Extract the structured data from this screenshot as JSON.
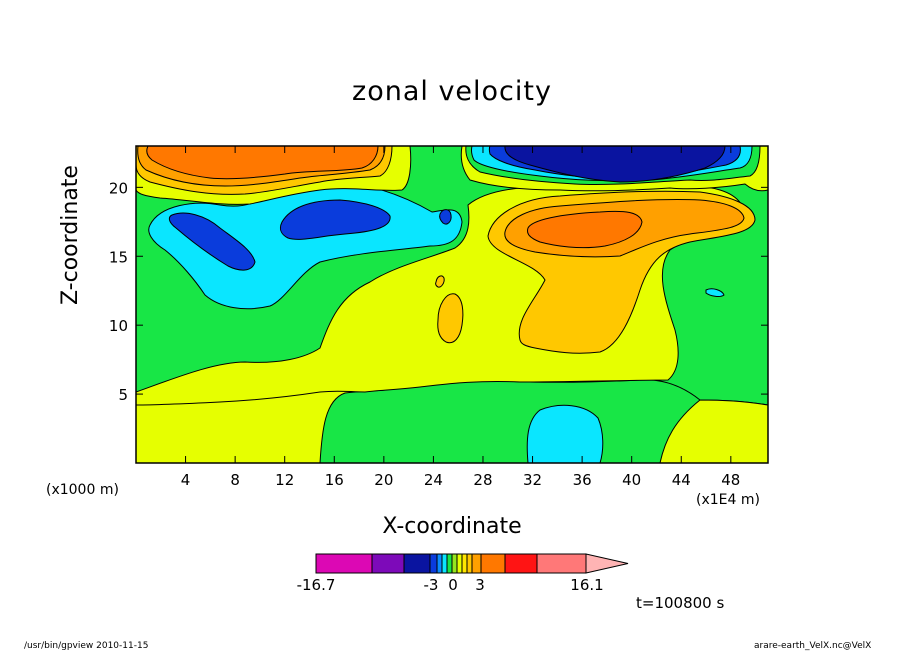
{
  "chart_data": {
    "type": "contour",
    "title": "zonal velocity",
    "xlabel": "X-coordinate",
    "ylabel": "Z-coordinate",
    "x_scale_label": "(x1E4 m)",
    "y_scale_label": "(x1000 m)",
    "time_label": "t=100800 s",
    "xlim": [
      0,
      51
    ],
    "ylim": [
      0,
      23
    ],
    "x_ticks": [
      4,
      8,
      12,
      16,
      20,
      24,
      28,
      32,
      36,
      40,
      44,
      48
    ],
    "y_ticks": [
      5,
      10,
      15,
      20
    ],
    "levels": [
      -16.7,
      -13,
      -9,
      -6,
      -4.5,
      -3,
      -2,
      -1,
      0,
      1,
      2,
      3,
      4.5,
      6,
      9,
      12,
      16.1
    ],
    "level_colors": [
      "#dc08b4",
      "#7d0ab9",
      "#0a14a0",
      "#0a3cdc",
      "#0a8cff",
      "#0ae6ff",
      "#18e646",
      "#96e61e",
      "#e6ff00",
      "#ffe600",
      "#ffc800",
      "#ffa000",
      "#ff7800",
      "#ff1414",
      "#ff7878",
      "#ffb4b4"
    ],
    "colorbar_labels": [
      {
        "value": -16.7,
        "text": "-16.7"
      },
      {
        "value": -3,
        "text": "-3"
      },
      {
        "value": 0,
        "text": "0"
      },
      {
        "value": 3,
        "text": "3"
      },
      {
        "value": 16.1,
        "text": "16.1"
      }
    ],
    "grid": false
  },
  "footer": {
    "left": "/usr/bin/gpview   2010-11-15",
    "right": "arare-earth_VelX.nc@VelX"
  }
}
